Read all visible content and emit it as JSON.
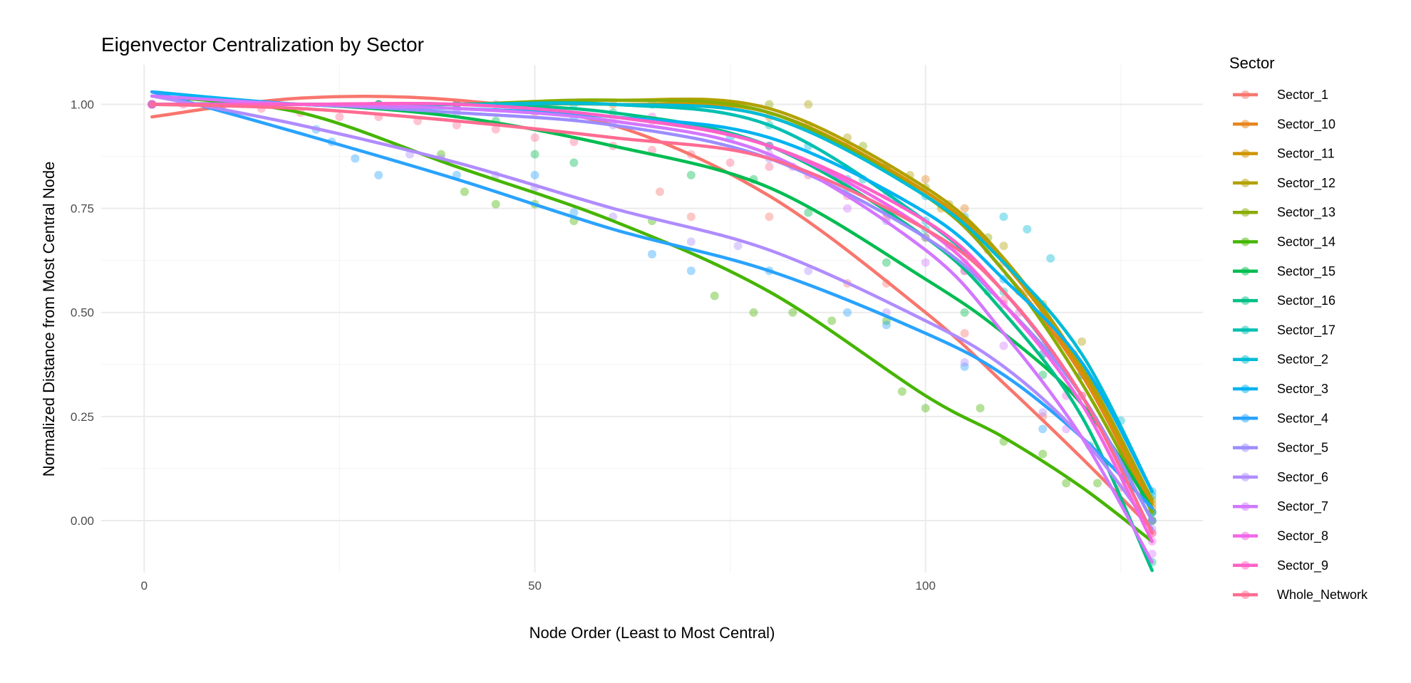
{
  "chart_data": {
    "type": "line",
    "title": "Eigenvector Centralization by Sector",
    "xlabel": "Node Order (Least to Most Central)",
    "ylabel": "Normalized Distance from Most Central Node",
    "xlim": [
      -5.5,
      135.5
    ],
    "ylim": [
      -0.125,
      1.095
    ],
    "x_ticks": [
      0,
      50,
      100
    ],
    "y_ticks": [
      0.0,
      0.25,
      0.5,
      0.75,
      1.0
    ],
    "x_tick_labels": [
      "0",
      "50",
      "100"
    ],
    "y_tick_labels": [
      "0.00",
      "0.25",
      "0.50",
      "0.75",
      "1.00"
    ],
    "grid": true,
    "legend": {
      "title": "Sector",
      "position": "right"
    },
    "smooth_x": [
      1,
      20,
      40,
      60,
      80,
      100,
      110,
      120,
      129
    ],
    "series": [
      {
        "name": "Sector_1",
        "color": "#F8766D",
        "smooth": [
          0.97,
          1.015,
          1.01,
          0.95,
          0.78,
          0.5,
          0.33,
          0.15,
          -0.02
        ],
        "points": [
          [
            1,
            1.0
          ],
          [
            10,
            1.0
          ],
          [
            30,
            1.0
          ],
          [
            50,
            0.98
          ],
          [
            66,
            0.79
          ],
          [
            70,
            0.73
          ],
          [
            80,
            0.73
          ],
          [
            90,
            0.57
          ],
          [
            95,
            0.57
          ],
          [
            105,
            0.45
          ],
          [
            115,
            0.25
          ],
          [
            125,
            0.08
          ],
          [
            129,
            0.0
          ]
        ]
      },
      {
        "name": "Sector_10",
        "color": "#E7851E",
        "smooth": [
          1.0,
          1.0,
          1.0,
          1.0,
          0.97,
          0.78,
          0.6,
          0.35,
          0.03
        ],
        "points": [
          [
            1,
            1.0
          ],
          [
            30,
            1.0
          ],
          [
            60,
            1.0
          ],
          [
            80,
            0.97
          ],
          [
            90,
            0.9
          ],
          [
            100,
            0.82
          ],
          [
            105,
            0.75
          ],
          [
            110,
            0.62
          ],
          [
            115,
            0.5
          ],
          [
            120,
            0.35
          ],
          [
            129,
            0.03
          ]
        ]
      },
      {
        "name": "Sector_11",
        "color": "#D09400",
        "smooth": [
          1.0,
          1.0,
          1.0,
          1.0,
          0.98,
          0.79,
          0.62,
          0.36,
          0.04
        ],
        "points": [
          [
            1,
            1.0
          ],
          [
            40,
            1.0
          ],
          [
            70,
            1.0
          ],
          [
            85,
            0.95
          ],
          [
            95,
            0.85
          ],
          [
            102,
            0.75
          ],
          [
            108,
            0.65
          ],
          [
            112,
            0.55
          ],
          [
            118,
            0.42
          ],
          [
            129,
            0.04
          ]
        ]
      },
      {
        "name": "Sector_12",
        "color": "#B2A100",
        "smooth": [
          1.0,
          1.0,
          1.0,
          1.01,
          0.99,
          0.8,
          0.63,
          0.37,
          0.05
        ],
        "points": [
          [
            1,
            1.0
          ],
          [
            50,
            1.0
          ],
          [
            75,
            1.0
          ],
          [
            85,
            1.0
          ],
          [
            90,
            0.92
          ],
          [
            98,
            0.83
          ],
          [
            103,
            0.76
          ],
          [
            110,
            0.66
          ],
          [
            115,
            0.52
          ],
          [
            120,
            0.43
          ],
          [
            129,
            0.05
          ]
        ]
      },
      {
        "name": "Sector_13",
        "color": "#89AC00",
        "smooth": [
          1.0,
          1.0,
          1.0,
          1.01,
          0.98,
          0.78,
          0.6,
          0.33,
          0.02
        ],
        "points": [
          [
            1,
            1.0
          ],
          [
            40,
            1.0
          ],
          [
            70,
            1.0
          ],
          [
            80,
            1.0
          ],
          [
            92,
            0.9
          ],
          [
            100,
            0.8
          ],
          [
            108,
            0.68
          ],
          [
            113,
            0.55
          ],
          [
            119,
            0.4
          ],
          [
            129,
            0.02
          ]
        ]
      },
      {
        "name": "Sector_14",
        "color": "#45B500",
        "smooth": [
          1.02,
          0.98,
          0.85,
          0.72,
          0.55,
          0.3,
          0.2,
          0.08,
          -0.05
        ],
        "points": [
          [
            1,
            1.0
          ],
          [
            38,
            0.88
          ],
          [
            41,
            0.79
          ],
          [
            45,
            0.76
          ],
          [
            50,
            0.76
          ],
          [
            55,
            0.72
          ],
          [
            65,
            0.72
          ],
          [
            73,
            0.54
          ],
          [
            78,
            0.5
          ],
          [
            83,
            0.5
          ],
          [
            88,
            0.48
          ],
          [
            95,
            0.48
          ],
          [
            97,
            0.31
          ],
          [
            100,
            0.27
          ],
          [
            107,
            0.27
          ],
          [
            110,
            0.19
          ],
          [
            115,
            0.16
          ],
          [
            118,
            0.09
          ],
          [
            122,
            0.09
          ],
          [
            129,
            0.0
          ]
        ]
      },
      {
        "name": "Sector_15",
        "color": "#00BC51",
        "smooth": [
          1.0,
          1.0,
          0.97,
          0.9,
          0.8,
          0.58,
          0.45,
          0.28,
          0.03
        ],
        "points": [
          [
            1,
            1.0
          ],
          [
            30,
            1.0
          ],
          [
            45,
            0.96
          ],
          [
            50,
            0.88
          ],
          [
            55,
            0.86
          ],
          [
            70,
            0.83
          ],
          [
            78,
            0.82
          ],
          [
            85,
            0.74
          ],
          [
            95,
            0.62
          ],
          [
            105,
            0.5
          ],
          [
            115,
            0.35
          ],
          [
            129,
            0.02
          ]
        ]
      },
      {
        "name": "Sector_16",
        "color": "#00C087",
        "smooth": [
          1.0,
          1.0,
          1.0,
          0.98,
          0.9,
          0.68,
          0.5,
          0.25,
          -0.12
        ],
        "points": [
          [
            1,
            1.0
          ],
          [
            40,
            1.0
          ],
          [
            60,
            0.98
          ],
          [
            80,
            0.9
          ],
          [
            90,
            0.8
          ],
          [
            100,
            0.68
          ],
          [
            108,
            0.55
          ],
          [
            115,
            0.4
          ],
          [
            121,
            0.18
          ],
          [
            129,
            -0.1
          ]
        ]
      },
      {
        "name": "Sector_17",
        "color": "#00C0B2",
        "smooth": [
          1.0,
          1.0,
          1.0,
          1.0,
          0.95,
          0.72,
          0.55,
          0.3,
          0.0
        ],
        "points": [
          [
            1,
            1.0
          ],
          [
            40,
            1.0
          ],
          [
            65,
            1.0
          ],
          [
            80,
            0.95
          ],
          [
            92,
            0.82
          ],
          [
            100,
            0.7
          ],
          [
            110,
            0.55
          ],
          [
            118,
            0.35
          ],
          [
            129,
            0.0
          ]
        ]
      },
      {
        "name": "Sector_2",
        "color": "#00BCD6",
        "smooth": [
          1.0,
          1.0,
          1.0,
          1.0,
          0.97,
          0.78,
          0.62,
          0.4,
          0.07
        ],
        "points": [
          [
            1,
            1.0
          ],
          [
            55,
            1.0
          ],
          [
            75,
            1.0
          ],
          [
            80,
            0.9
          ],
          [
            85,
            0.9
          ],
          [
            95,
            0.85
          ],
          [
            100,
            0.78
          ],
          [
            105,
            0.73
          ],
          [
            110,
            0.73
          ],
          [
            113,
            0.7
          ],
          [
            116,
            0.63
          ],
          [
            125,
            0.24
          ],
          [
            129,
            0.07
          ]
        ]
      },
      {
        "name": "Sector_3",
        "color": "#00B3F2",
        "smooth": [
          1.03,
          1.0,
          0.99,
          0.97,
          0.92,
          0.74,
          0.58,
          0.38,
          0.07
        ],
        "points": [
          [
            1,
            1.0
          ],
          [
            30,
            1.0
          ],
          [
            55,
            0.97
          ],
          [
            75,
            0.92
          ],
          [
            90,
            0.82
          ],
          [
            100,
            0.72
          ],
          [
            110,
            0.58
          ],
          [
            120,
            0.35
          ],
          [
            129,
            0.06
          ]
        ]
      },
      {
        "name": "Sector_4",
        "color": "#29A3FF",
        "smooth": [
          1.03,
          0.93,
          0.82,
          0.7,
          0.6,
          0.45,
          0.35,
          0.2,
          0.03
        ],
        "points": [
          [
            1,
            1.0
          ],
          [
            22,
            0.94
          ],
          [
            24,
            0.91
          ],
          [
            27,
            0.87
          ],
          [
            30,
            0.83
          ],
          [
            40,
            0.83
          ],
          [
            50,
            0.83
          ],
          [
            55,
            0.74
          ],
          [
            65,
            0.64
          ],
          [
            70,
            0.6
          ],
          [
            80,
            0.6
          ],
          [
            90,
            0.5
          ],
          [
            95,
            0.47
          ],
          [
            105,
            0.37
          ],
          [
            115,
            0.22
          ],
          [
            129,
            0.02
          ]
        ]
      },
      {
        "name": "Sector_5",
        "color": "#9C8DFF",
        "smooth": [
          1.0,
          1.0,
          0.98,
          0.95,
          0.87,
          0.68,
          0.52,
          0.3,
          0.0
        ],
        "points": [
          [
            1,
            1.0
          ],
          [
            40,
            0.98
          ],
          [
            60,
            0.95
          ],
          [
            80,
            0.87
          ],
          [
            95,
            0.72
          ],
          [
            105,
            0.6
          ],
          [
            115,
            0.4
          ],
          [
            129,
            0.0
          ]
        ]
      },
      {
        "name": "Sector_6",
        "color": "#B08CFF",
        "smooth": [
          1.02,
          0.95,
          0.86,
          0.75,
          0.65,
          0.48,
          0.37,
          0.2,
          -0.02
        ],
        "points": [
          [
            1,
            1.0
          ],
          [
            34,
            0.88
          ],
          [
            38,
            0.87
          ],
          [
            45,
            0.83
          ],
          [
            50,
            0.8
          ],
          [
            60,
            0.73
          ],
          [
            70,
            0.67
          ],
          [
            76,
            0.66
          ],
          [
            85,
            0.6
          ],
          [
            95,
            0.5
          ],
          [
            105,
            0.38
          ],
          [
            115,
            0.26
          ],
          [
            129,
            -0.02
          ]
        ]
      },
      {
        "name": "Sector_7",
        "color": "#D277FF",
        "smooth": [
          1.02,
          1.0,
          0.99,
          0.96,
          0.88,
          0.65,
          0.45,
          0.2,
          -0.1
        ],
        "points": [
          [
            1,
            1.0
          ],
          [
            40,
            0.99
          ],
          [
            60,
            0.96
          ],
          [
            80,
            0.88
          ],
          [
            90,
            0.75
          ],
          [
            100,
            0.62
          ],
          [
            110,
            0.42
          ],
          [
            118,
            0.22
          ],
          [
            129,
            -0.08
          ]
        ]
      },
      {
        "name": "Sector_8",
        "color": "#F166E8",
        "smooth": [
          1.0,
          1.0,
          1.0,
          0.97,
          0.9,
          0.7,
          0.52,
          0.28,
          -0.05
        ],
        "points": [
          [
            1,
            1.0
          ],
          [
            45,
            1.0
          ],
          [
            65,
            0.97
          ],
          [
            83,
            0.85
          ],
          [
            95,
            0.74
          ],
          [
            103,
            0.66
          ],
          [
            110,
            0.52
          ],
          [
            118,
            0.3
          ],
          [
            129,
            -0.05
          ]
        ]
      },
      {
        "name": "Sector_9",
        "color": "#FF61C7",
        "smooth": [
          1.0,
          1.0,
          1.0,
          0.97,
          0.9,
          0.72,
          0.55,
          0.3,
          -0.03
        ],
        "points": [
          [
            1,
            1.0
          ],
          [
            40,
            1.0
          ],
          [
            65,
            0.96
          ],
          [
            80,
            0.9
          ],
          [
            95,
            0.78
          ],
          [
            105,
            0.62
          ],
          [
            112,
            0.5
          ],
          [
            120,
            0.3
          ],
          [
            129,
            -0.03
          ]
        ]
      },
      {
        "name": "Whole_Network",
        "color": "#FF6C91",
        "smooth": [
          1.0,
          0.99,
          0.96,
          0.92,
          0.87,
          0.7,
          0.55,
          0.3,
          -0.03
        ],
        "points": [
          [
            1,
            1.0
          ],
          [
            5,
            1.0
          ],
          [
            10,
            0.99
          ],
          [
            15,
            0.99
          ],
          [
            20,
            0.98
          ],
          [
            25,
            0.97
          ],
          [
            30,
            0.97
          ],
          [
            35,
            0.96
          ],
          [
            40,
            0.95
          ],
          [
            45,
            0.94
          ],
          [
            50,
            0.92
          ],
          [
            55,
            0.91
          ],
          [
            60,
            0.9
          ],
          [
            65,
            0.89
          ],
          [
            70,
            0.88
          ],
          [
            75,
            0.86
          ],
          [
            80,
            0.85
          ],
          [
            85,
            0.83
          ],
          [
            90,
            0.78
          ],
          [
            95,
            0.73
          ],
          [
            100,
            0.68
          ],
          [
            105,
            0.6
          ],
          [
            110,
            0.53
          ],
          [
            115,
            0.42
          ],
          [
            120,
            0.3
          ],
          [
            125,
            0.15
          ],
          [
            129,
            -0.03
          ]
        ]
      }
    ]
  }
}
